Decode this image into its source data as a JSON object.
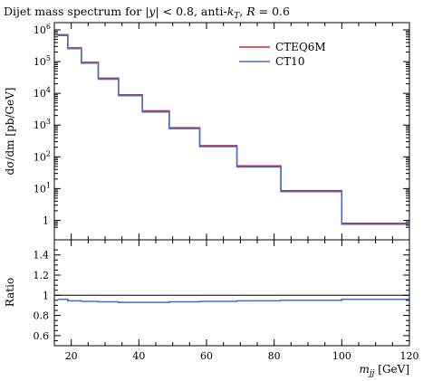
{
  "chart_data": {
    "type": "line",
    "title": "Dijet mass spectrum for |y| < 0.8, anti-kT, R = 0.6",
    "title_parts": {
      "prefix": "Dijet mass spectrum for |",
      "y_var": "y",
      "mid": "| < 0.8, anti-",
      "k_var": "k",
      "k_sub": "T",
      "comma": ", ",
      "r_var": "R",
      "suffix": " = 0.6"
    },
    "xlabel": "m_jj [GeV]",
    "xlabel_parts": {
      "var": "m",
      "sub": "jj",
      "unit": " [GeV]"
    },
    "ylabel": "dσ/dm [pb/GeV]",
    "ratio_ylabel": "Ratio",
    "legend_position": "top-right",
    "xlim": [
      15,
      120
    ],
    "ylim": [
      0.5,
      1000000
    ],
    "yscale": "log",
    "ratio_ylim": [
      0.5,
      1.55
    ],
    "x_ticks": [
      20,
      40,
      60,
      80,
      100,
      120
    ],
    "y_ticks": [
      {
        "value": 1,
        "base": "1",
        "exp": ""
      },
      {
        "value": 10,
        "base": "10",
        "exp": "1"
      },
      {
        "value": 100,
        "base": "10",
        "exp": "2"
      },
      {
        "value": 1000,
        "base": "10",
        "exp": "3"
      },
      {
        "value": 10000,
        "base": "10",
        "exp": "4"
      },
      {
        "value": 100000,
        "base": "10",
        "exp": "5"
      },
      {
        "value": 1000000,
        "base": "10",
        "exp": "6"
      }
    ],
    "ratio_ticks": [
      "0.6",
      "0.8",
      "1",
      "1.2",
      "1.4"
    ],
    "bin_edges": [
      16,
      19,
      23,
      28,
      34,
      41,
      49,
      58,
      69,
      82,
      100,
      120
    ],
    "series": [
      {
        "name": "CTEQ6M",
        "color": "#d62728",
        "values": [
          700000,
          270000,
          95000,
          30000,
          9000,
          2800,
          830,
          225,
          52,
          8.5,
          0.8
        ]
      },
      {
        "name": "CT10",
        "color": "#3b6fd6",
        "values": [
          660000,
          255000,
          89000,
          28000,
          8400,
          2600,
          775,
          210,
          48,
          8.0,
          0.75
        ]
      }
    ],
    "ratio": {
      "reference_line": 1,
      "values": [
        0.96,
        0.945,
        0.94,
        0.935,
        0.93,
        0.93,
        0.935,
        0.94,
        0.945,
        0.95,
        0.96
      ]
    }
  }
}
